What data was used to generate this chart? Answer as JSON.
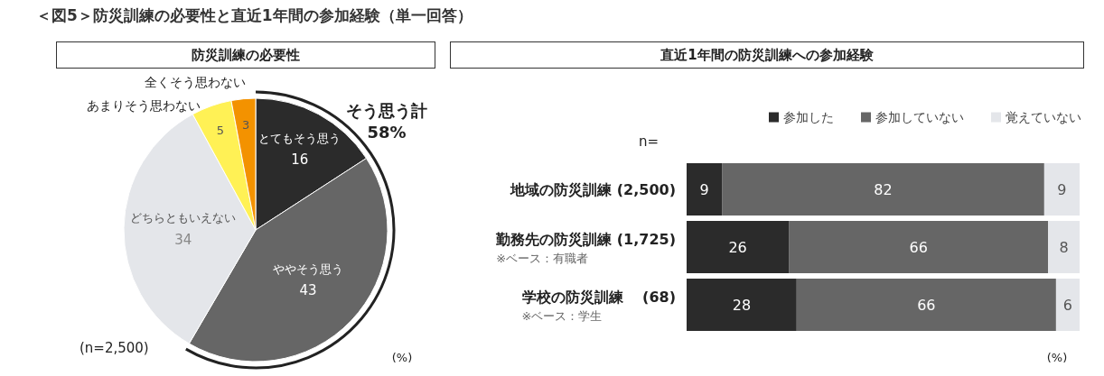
{
  "chart_data": [
    {
      "type": "pie",
      "title": "＜図5＞防災訓練の必要性と直近1年間の参加経験（単一回答）",
      "subtitle": "防災訓練の必要性",
      "categories": [
        "とてもそう思う",
        "ややそう思う",
        "どちらともいえない",
        "あまりそう思わない",
        "全くそう思わない"
      ],
      "values": [
        16,
        43,
        34,
        5,
        3
      ],
      "colors": [
        "#2b2b2b",
        "#666666",
        "#e4e6ea",
        "#fff155",
        "#f39200"
      ],
      "data_labels": true,
      "annotations": [
        "そう思う計\n58%",
        "(n=2,500)",
        "(%)"
      ]
    },
    {
      "type": "bar",
      "orientation": "horizontal",
      "stacked": true,
      "subtitle": "直近1年間の防災訓練への参加経験",
      "categories": [
        "地域の防災訓練 (2,500)",
        "勤務先の防災訓練 (1,725)\n※ベース：有職者",
        "学校の防災訓練　 (68)\n※ベース：学生"
      ],
      "series": [
        {
          "name": "参加した",
          "color": "#2b2b2b",
          "values": [
            9,
            26,
            28
          ]
        },
        {
          "name": "参加していない",
          "color": "#666666",
          "values": [
            82,
            66,
            66
          ]
        },
        {
          "name": "覚えていない",
          "color": "#e4e6ea",
          "values": [
            9,
            8,
            6
          ]
        }
      ],
      "xlim": [
        0,
        100
      ],
      "tick_labels": "y",
      "grid": false,
      "legend": "top right",
      "data_labels": true,
      "annotations": [
        "n=",
        "(%)"
      ]
    }
  ]
}
